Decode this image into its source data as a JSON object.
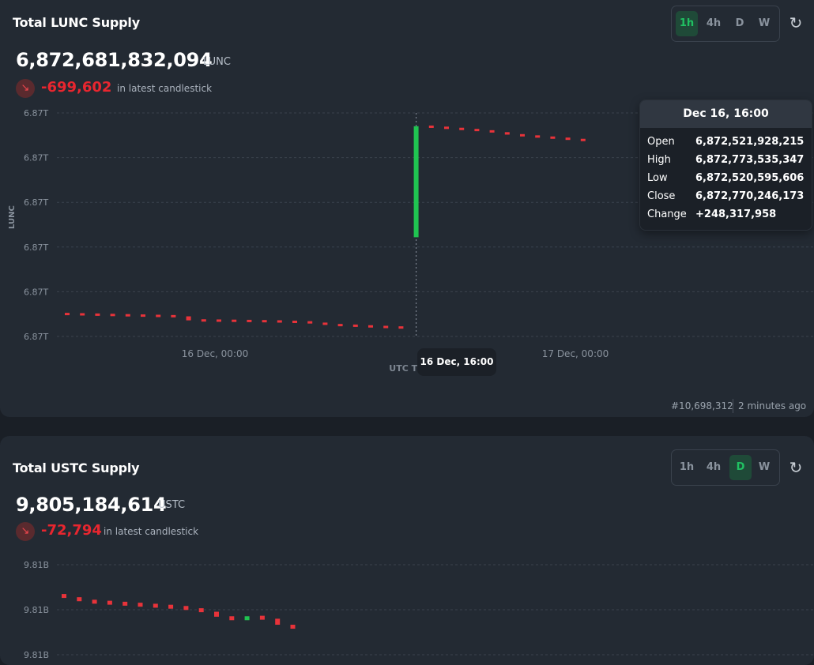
{
  "lunc": {
    "title": "Total LUNC Supply",
    "value": "6,872,681,832,094",
    "unit": "LUNC",
    "change": "-699,602",
    "change_note": "in latest candlestick",
    "periods": [
      "1h",
      "4h",
      "D",
      "W"
    ],
    "active_period": "1h",
    "block": "#10,698,312",
    "updated": "2 minutes ago",
    "tooltip": {
      "date": "Dec 16, 16:00",
      "rows": [
        {
          "label": "Open",
          "value": "6,872,521,928,215"
        },
        {
          "label": "High",
          "value": "6,872,773,535,347"
        },
        {
          "label": "Low",
          "value": "6,872,520,595,606"
        },
        {
          "label": "Close",
          "value": "6,872,770,246,173"
        },
        {
          "label": "Change",
          "value": "+248,317,958"
        }
      ]
    },
    "x_tooltip": "16 Dec, 16:00"
  },
  "ustc": {
    "title": "Total USTC Supply",
    "value": "9,805,184,614",
    "unit": "USTC",
    "change": "-72,794",
    "change_note": "in latest candlestick",
    "periods": [
      "1h",
      "4h",
      "D",
      "W"
    ],
    "active_period": "D"
  },
  "colors": {
    "up": "#20c451",
    "down": "#e8333a",
    "accent": "#20c162",
    "grid": "#3b434e"
  },
  "chart_data": [
    {
      "type": "candlestick",
      "ylabel": "LUNC",
      "xlabel": "UTC Time Buckets",
      "y_ticks": [
        "6.87T",
        "6.87T",
        "6.87T",
        "6.87T",
        "6.87T",
        "6.87T"
      ],
      "x_ticks": [
        "16 Dec, 00:00",
        "17 Dec, 00:00"
      ],
      "grid": true,
      "series": [
        {
          "values": [
            {
              "o": 6872350500000,
              "c": 6872349800000,
              "dir": "down"
            },
            {
              "o": 6872349800000,
              "c": 6872349100000,
              "dir": "down"
            },
            {
              "o": 6872349100000,
              "c": 6872348400000,
              "dir": "down"
            },
            {
              "o": 6872348400000,
              "c": 6872347700000,
              "dir": "down"
            },
            {
              "o": 6872347700000,
              "c": 6872347000000,
              "dir": "down"
            },
            {
              "o": 6872347000000,
              "c": 6872346300000,
              "dir": "down"
            },
            {
              "o": 6872346300000,
              "c": 6872345600000,
              "dir": "down"
            },
            {
              "o": 6872345600000,
              "c": 6872345000000,
              "dir": "down"
            },
            {
              "o": 6872345000000,
              "c": 6872336000000,
              "dir": "down"
            },
            {
              "o": 6872336000000,
              "c": 6872335600000,
              "dir": "down"
            },
            {
              "o": 6872335600000,
              "c": 6872335200000,
              "dir": "down"
            },
            {
              "o": 6872335200000,
              "c": 6872334800000,
              "dir": "down"
            },
            {
              "o": 6872334800000,
              "c": 6872334400000,
              "dir": "down"
            },
            {
              "o": 6872334400000,
              "c": 6872333900000,
              "dir": "down"
            },
            {
              "o": 6872333900000,
              "c": 6872333200000,
              "dir": "down"
            },
            {
              "o": 6872333200000,
              "c": 6872332200000,
              "dir": "down"
            },
            {
              "o": 6872332200000,
              "c": 6872330800000,
              "dir": "down"
            },
            {
              "o": 6872330800000,
              "c": 6872326000000,
              "dir": "down"
            },
            {
              "o": 6872326000000,
              "c": 6872324800000,
              "dir": "down"
            },
            {
              "o": 6872324800000,
              "c": 6872323200000,
              "dir": "down"
            },
            {
              "o": 6872323200000,
              "c": 6872321800000,
              "dir": "down"
            },
            {
              "o": 6872321800000,
              "c": 6872320600000,
              "dir": "down"
            },
            {
              "o": 6872320600000,
              "c": 6872319500000,
              "dir": "down"
            },
            {
              "o": 6872521928215,
              "c": 6872770246173,
              "dir": "up"
            },
            {
              "o": 6872770246173,
              "c": 6872768000000,
              "dir": "down"
            },
            {
              "o": 6872768000000,
              "c": 6872765500000,
              "dir": "down"
            },
            {
              "o": 6872765500000,
              "c": 6872763000000,
              "dir": "down"
            },
            {
              "o": 6872763000000,
              "c": 6872760500000,
              "dir": "down"
            },
            {
              "o": 6872760500000,
              "c": 6872757000000,
              "dir": "down"
            },
            {
              "o": 6872757000000,
              "c": 6872751500000,
              "dir": "down"
            },
            {
              "o": 6872751500000,
              "c": 6872748500000,
              "dir": "down"
            },
            {
              "o": 6872748500000,
              "c": 6872746000000,
              "dir": "down"
            },
            {
              "o": 6872746000000,
              "c": 6872743500000,
              "dir": "down"
            },
            {
              "o": 6872743500000,
              "c": 6872741000000,
              "dir": "down"
            },
            {
              "o": 6872741000000,
              "c": 6872738000000,
              "dir": "down"
            }
          ]
        }
      ]
    },
    {
      "type": "candlestick",
      "y_ticks": [
        "9.81B",
        "9.81B",
        "9.81B"
      ],
      "grid": true,
      "series": [
        {
          "values": [
            {
              "o": 9806200000,
              "c": 9806150000,
              "dir": "down"
            },
            {
              "o": 9806150000,
              "c": 9806070000,
              "dir": "down"
            },
            {
              "o": 9806070000,
              "c": 9806050000,
              "dir": "down"
            },
            {
              "o": 9806050000,
              "c": 9806030000,
              "dir": "down"
            },
            {
              "o": 9806030000,
              "c": 9806010000,
              "dir": "down"
            },
            {
              "o": 9806010000,
              "c": 9805990000,
              "dir": "down"
            },
            {
              "o": 9805990000,
              "c": 9805970000,
              "dir": "down"
            },
            {
              "o": 9805970000,
              "c": 9805950000,
              "dir": "down"
            },
            {
              "o": 9805950000,
              "c": 9805920000,
              "dir": "down"
            },
            {
              "o": 9805920000,
              "c": 9805860000,
              "dir": "down"
            },
            {
              "o": 9805860000,
              "c": 9805760000,
              "dir": "down"
            },
            {
              "o": 9805760000,
              "c": 9805700000,
              "dir": "down"
            },
            {
              "o": 9805700000,
              "c": 9805760000,
              "dir": "up"
            },
            {
              "o": 9805760000,
              "c": 9805720000,
              "dir": "down"
            },
            {
              "o": 9805720000,
              "c": 9805600000,
              "dir": "down"
            },
            {
              "o": 9805600000,
              "c": 9805520000,
              "dir": "down"
            }
          ]
        }
      ]
    }
  ]
}
